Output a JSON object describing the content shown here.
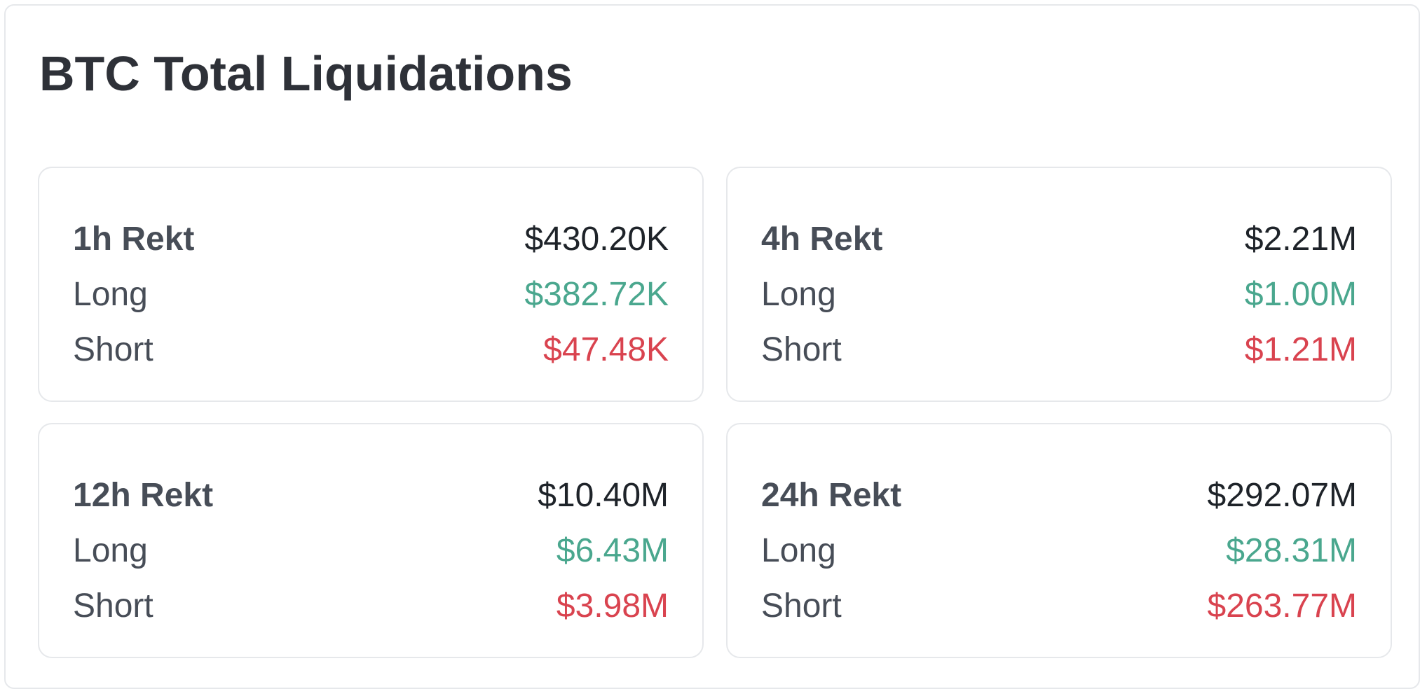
{
  "title": "BTC Total Liquidations",
  "colors": {
    "long": "#4aa78e",
    "short": "#d9434f",
    "text_primary": "#1e2329",
    "text_secondary": "#474d57",
    "border": "#e6e8eb"
  },
  "cards": [
    {
      "period_label": "1h Rekt",
      "total": "$430.20K",
      "long_label": "Long",
      "long_value": "$382.72K",
      "short_label": "Short",
      "short_value": "$47.48K"
    },
    {
      "period_label": "4h Rekt",
      "total": "$2.21M",
      "long_label": "Long",
      "long_value": "$1.00M",
      "short_label": "Short",
      "short_value": "$1.21M"
    },
    {
      "period_label": "12h Rekt",
      "total": "$10.40M",
      "long_label": "Long",
      "long_value": "$6.43M",
      "short_label": "Short",
      "short_value": "$3.98M"
    },
    {
      "period_label": "24h Rekt",
      "total": "$292.07M",
      "long_label": "Long",
      "long_value": "$28.31M",
      "short_label": "Short",
      "short_value": "$263.77M"
    }
  ]
}
